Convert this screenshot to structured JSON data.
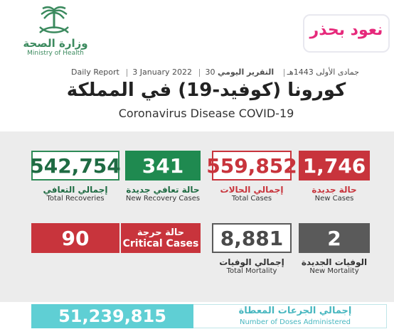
{
  "header": {
    "moh_ar": "وزارة الصحة",
    "moh_en": "Ministry of Health",
    "campaign_logo_text": "نعود بحذر",
    "report_ar": "التقرير اليومي",
    "hijri_date": "30 جمادى الأولى 1443هـ",
    "greg_date": "3 January 2022",
    "report_en": "Daily Report",
    "title_ar": "كورونا (كوفيد-19) في المملكة",
    "title_en": "Coronavirus Disease COVID-19"
  },
  "stats": {
    "total_recoveries": {
      "value": "542,754",
      "label_ar": "إجمالي التعافي",
      "label_en": "Total Recoveries"
    },
    "new_recovery_cases": {
      "value": "341",
      "label_ar": "حالة تعافي جديدة",
      "label_en": "New Recovery Cases"
    },
    "total_cases": {
      "value": "559,852",
      "label_ar": "إجمالي الحالات",
      "label_en": "Total Cases"
    },
    "new_cases": {
      "value": "1,746",
      "label_ar": "حالة جديدة",
      "label_en": "New Cases"
    },
    "critical_cases": {
      "value": "90",
      "label_ar": "حالة حرجة",
      "label_en": "Critical Cases"
    },
    "total_mortality": {
      "value": "8,881",
      "label_ar": "إجمالي الوفيات",
      "label_en": "Total Mortality"
    },
    "new_mortality": {
      "value": "2",
      "label_ar": "الوفيات الجديدة",
      "label_en": "New Mortality"
    }
  },
  "doses": {
    "value": "51,239,815",
    "label_ar": "إجمالي الجرعات المعطاة",
    "label_en": "Number of Doses Administered"
  },
  "colors": {
    "green": "#1f8a50",
    "red": "#c8343c",
    "grey": "#5a5a5a",
    "teal": "#5fcfd4",
    "moh_green": "#3b8a5e"
  }
}
